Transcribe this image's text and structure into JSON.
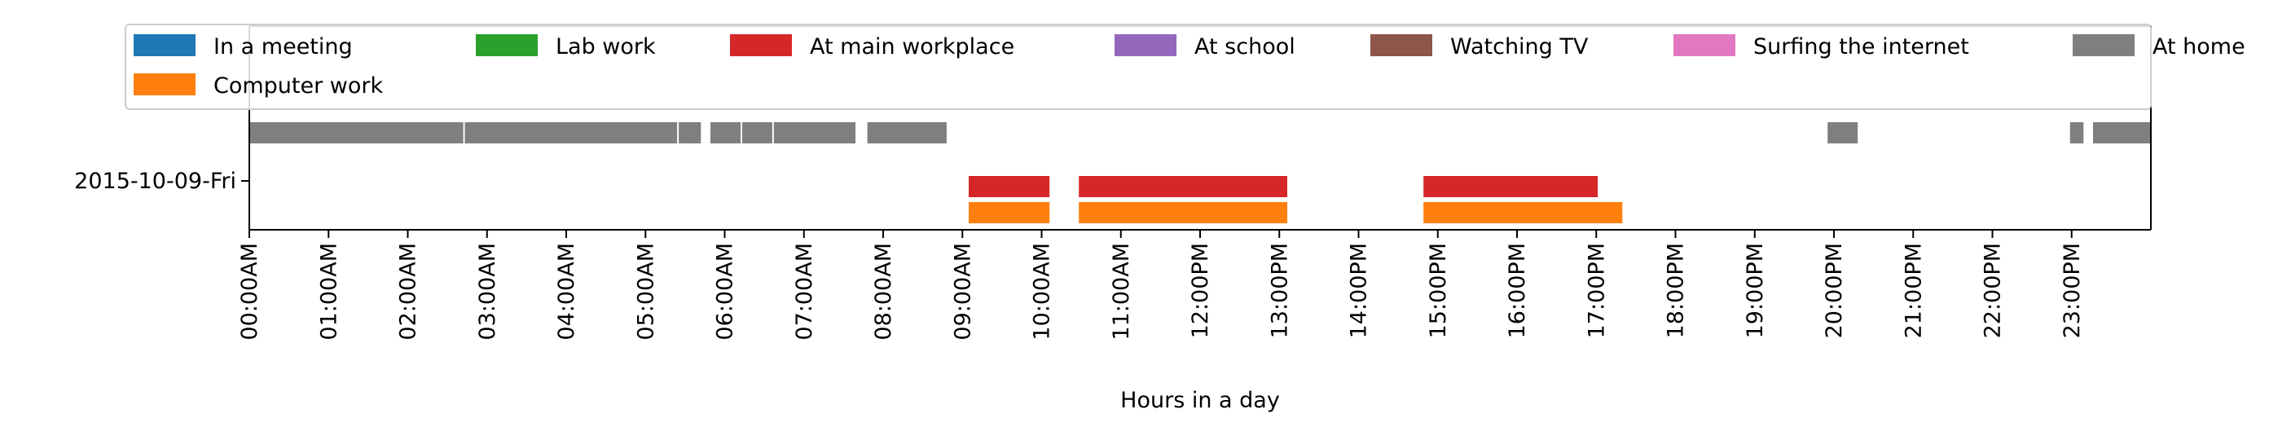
{
  "chart_data": {
    "type": "timeline",
    "xlabel": "Hours in a day",
    "ylabel": "",
    "xlim": [
      0,
      24
    ],
    "x_tick_values": [
      0,
      1,
      2,
      3,
      4,
      5,
      6,
      7,
      8,
      9,
      10,
      11,
      12,
      13,
      14,
      15,
      16,
      17,
      18,
      19,
      20,
      21,
      22,
      23
    ],
    "x_tick_labels": [
      "00:00AM",
      "01:00AM",
      "02:00AM",
      "03:00AM",
      "04:00AM",
      "05:00AM",
      "06:00AM",
      "07:00AM",
      "08:00AM",
      "09:00AM",
      "10:00AM",
      "11:00AM",
      "12:00PM",
      "13:00PM",
      "14:00PM",
      "15:00PM",
      "16:00PM",
      "17:00PM",
      "18:00PM",
      "19:00PM",
      "20:00PM",
      "21:00PM",
      "22:00PM",
      "23:00PM"
    ],
    "y_tick_labels": [
      "2015-10-09-Fri"
    ],
    "legend": {
      "position": "top",
      "entries": [
        {
          "label": "In a meeting",
          "color": "#1f77b4"
        },
        {
          "label": "Computer work",
          "color": "#ff7f0e"
        },
        {
          "label": "Lab work",
          "color": "#2ca02c"
        },
        {
          "label": "At main workplace",
          "color": "#d62728"
        },
        {
          "label": "At school",
          "color": "#9467bd"
        },
        {
          "label": "Watching TV",
          "color": "#8c564b"
        },
        {
          "label": "Surfing the internet",
          "color": "#e377c2"
        },
        {
          "label": "At home",
          "color": "#7f7f7f"
        }
      ]
    },
    "series": [
      {
        "name": "Computer work",
        "color": "#ff7f0e",
        "lane": 0,
        "intervals": [
          [
            9.08,
            10.1
          ],
          [
            10.47,
            13.1
          ],
          [
            14.82,
            17.33
          ]
        ]
      },
      {
        "name": "At main workplace",
        "color": "#d62728",
        "lane": 1,
        "intervals": [
          [
            9.08,
            10.1
          ],
          [
            10.47,
            13.1
          ],
          [
            14.82,
            17.02
          ]
        ]
      },
      {
        "name": "At home",
        "color": "#7f7f7f",
        "lane": 4,
        "intervals": [
          [
            0.0,
            2.7
          ],
          [
            2.72,
            5.4
          ],
          [
            5.42,
            5.7
          ],
          [
            5.82,
            6.2
          ],
          [
            6.22,
            6.6
          ],
          [
            6.62,
            7.65
          ],
          [
            7.8,
            8.8
          ],
          [
            19.92,
            20.3
          ],
          [
            22.98,
            23.15
          ],
          [
            23.27,
            24.0
          ]
        ]
      }
    ]
  }
}
